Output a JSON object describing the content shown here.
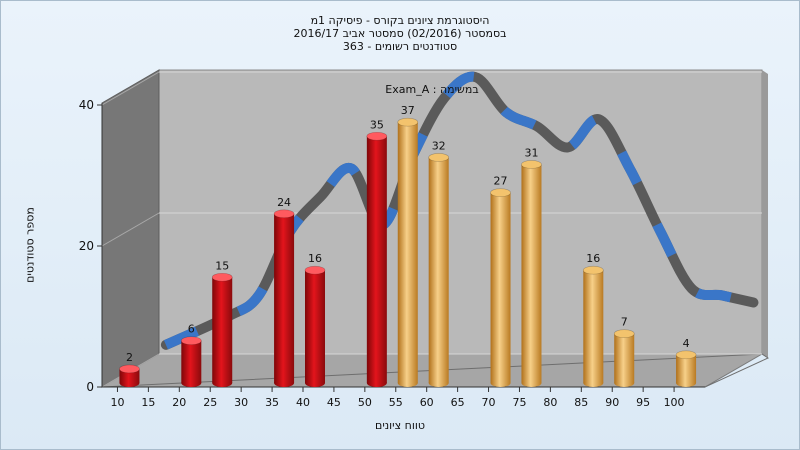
{
  "header": {
    "line1": "היסטוגרמת ציונים בקורס - פיסיקה 1מ",
    "line2": "בסמסטר  (02/2016)  סמסטר אביב 2016/17",
    "line3": "סטודנטים רשומים - 363"
  },
  "chart_data": {
    "type": "bar",
    "series_label": "Exam_A : במשימה",
    "xlabel": "טווח ציונים",
    "ylabel": "מספר סטודנטים",
    "ylim": [
      0,
      40
    ],
    "yticks": [
      0,
      20,
      40
    ],
    "xticks": [
      10,
      15,
      20,
      25,
      30,
      35,
      40,
      45,
      50,
      55,
      60,
      65,
      70,
      75,
      80,
      85,
      90,
      95,
      100
    ],
    "bars": [
      {
        "x": 10,
        "value": 2,
        "group": "fail"
      },
      {
        "x": 20,
        "value": 6,
        "group": "fail"
      },
      {
        "x": 25,
        "value": 15,
        "group": "fail"
      },
      {
        "x": 35,
        "value": 24,
        "group": "fail"
      },
      {
        "x": 40,
        "value": 16,
        "group": "fail"
      },
      {
        "x": 50,
        "value": 35,
        "group": "fail"
      },
      {
        "x": 55,
        "value": 37,
        "group": "pass"
      },
      {
        "x": 60,
        "value": 32,
        "group": "pass"
      },
      {
        "x": 70,
        "value": 27,
        "group": "pass"
      },
      {
        "x": 75,
        "value": 31,
        "group": "pass"
      },
      {
        "x": 85,
        "value": 16,
        "group": "pass"
      },
      {
        "x": 90,
        "value": 7,
        "group": "pass"
      },
      {
        "x": 100,
        "value": 4,
        "group": "pass"
      }
    ],
    "curve": [
      [
        10,
        2
      ],
      [
        20,
        6
      ],
      [
        25,
        9
      ],
      [
        30,
        18
      ],
      [
        35,
        23
      ],
      [
        40,
        27
      ],
      [
        45,
        19
      ],
      [
        50,
        29
      ],
      [
        55,
        37
      ],
      [
        60,
        40
      ],
      [
        65,
        35
      ],
      [
        70,
        33
      ],
      [
        75,
        30
      ],
      [
        80,
        34
      ],
      [
        85,
        27
      ],
      [
        90,
        18
      ],
      [
        95,
        10
      ],
      [
        100,
        9
      ],
      [
        105,
        8
      ]
    ],
    "colors": {
      "fail": "#e3141c",
      "pass": "#f0b24c",
      "curve_dark": "#5a5a5a",
      "curve_blue": "#3a76c8",
      "back_wall": "#b9b9b9",
      "side_wall": "#777777",
      "floor": "#a6a6a6"
    }
  }
}
